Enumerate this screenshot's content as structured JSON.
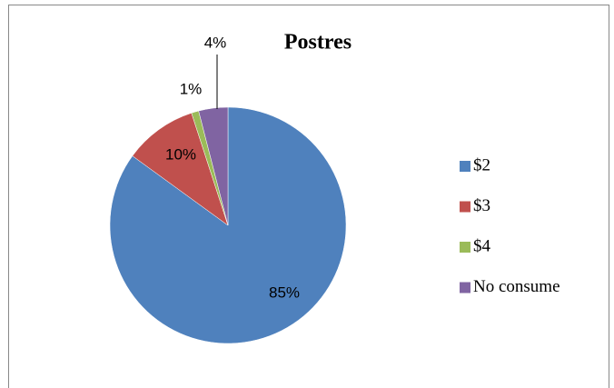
{
  "chart_data": {
    "type": "pie",
    "title": "Postres",
    "categories": [
      "$2",
      "$3",
      "$4",
      "No consume"
    ],
    "values": [
      85,
      10,
      1,
      4
    ],
    "value_labels": [
      "85%",
      "10%",
      "1%",
      "4%"
    ],
    "colors": [
      "#4f81bd",
      "#c0504d",
      "#9bbb59",
      "#8064a2"
    ],
    "legend": "right"
  }
}
